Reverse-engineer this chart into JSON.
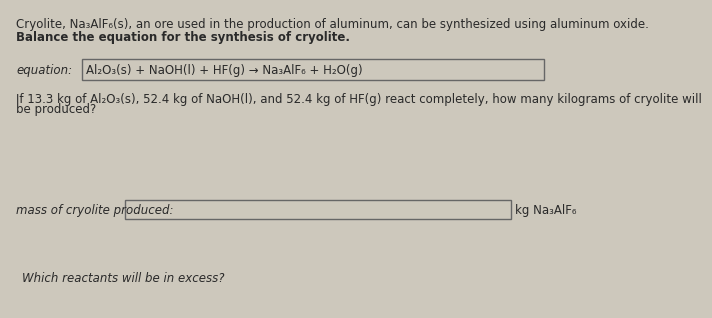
{
  "bg_color": "#cdc8bc",
  "text_color": "#2a2a2a",
  "title_line": "Cryolite, Na₃AlF₆(s), an ore used in the production of aluminum, can be synthesized using aluminum oxide.",
  "subtitle_line": "Balance the equation for the synthesis of cryolite.",
  "equation_label": "equation:",
  "equation_text": "Al₂O₃(s) + NaOH(l) + HF(g) → Na₃AlF₆ + H₂O(g)",
  "question_line1": "If 13.3 kg of Al₂O₃(s), 52.4 kg of NaOH(l), and 52.4 kg of HF(g) react completely, how many kilograms of cryolite will",
  "question_line2": "be produced?",
  "mass_label": "mass of cryolite produced:",
  "mass_unit": "kg Na₃AlF₆",
  "excess_question": "Which reactants will be in excess?",
  "box_face_color": "#cdc8bc",
  "box_edge_color": "#666666",
  "font_size_main": 8.5
}
